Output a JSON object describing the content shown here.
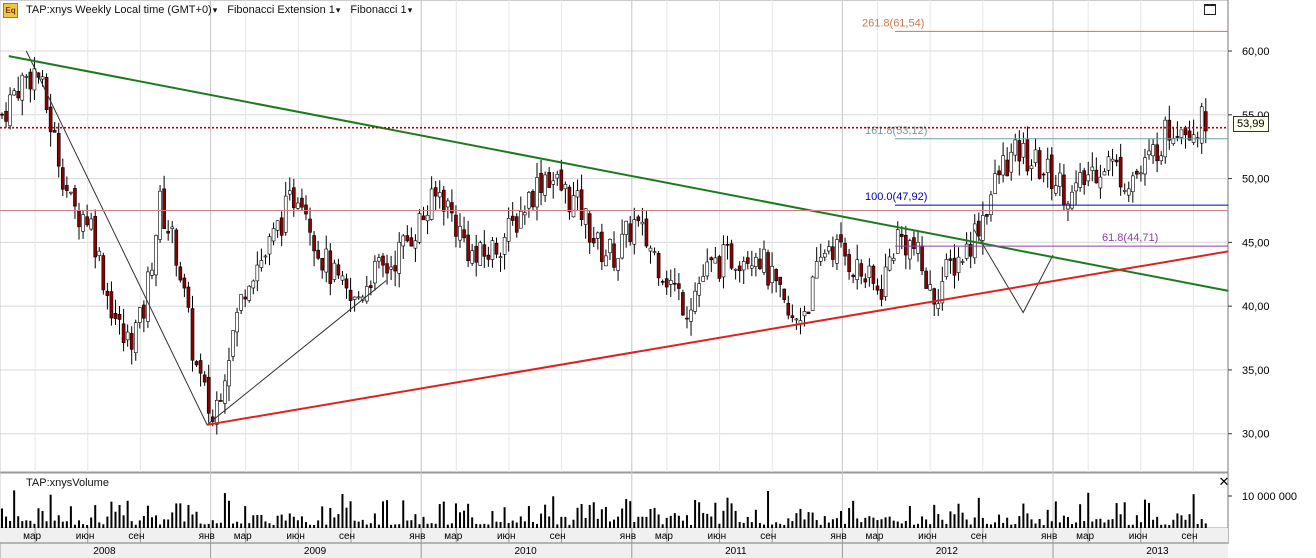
{
  "toolbar": {
    "app_icon": "Eq",
    "symbol_title": "TAP:xnys Weekly Local time (GMT+0)",
    "study1": "Fibonacci Extension 1",
    "study2": "Fibonacci 1"
  },
  "volume_title": "TAP:xnysVolume",
  "last_price": "53,99",
  "icons": {
    "maximize": "maximize-icon",
    "close": "close-icon"
  },
  "colors": {
    "up_candle": "#ffffff",
    "down_candle": "#8b0000",
    "wick": "#000000",
    "trend_green": "#1e7a1e",
    "trend_red": "#e02020",
    "price_line": "#b40000",
    "fib_261": "#c87850",
    "fib_161": "#6aa0a8",
    "fib_100": "#0000aa",
    "fib_618": "#9040a0",
    "fib_0": "#d08080",
    "volume": "#000000",
    "grid": "#d8d8d8",
    "bottom_bar": "#f0f0f0"
  },
  "chart_data": {
    "type": "candlestick",
    "symbol": "TAP:xnys",
    "interval": "Weekly",
    "y_axis": {
      "range": [
        27.0,
        64.0
      ],
      "ticks": [
        "60,00",
        "55,00",
        "50,00",
        "45,00",
        "40,00",
        "35,00",
        "30,00"
      ],
      "tick_values": [
        60,
        55,
        50,
        45,
        40,
        35,
        30
      ]
    },
    "volume_axis": {
      "ticks": [
        "10 000 000"
      ],
      "tick_values": [
        10000000
      ]
    },
    "month_labels": [
      "мар",
      "июн",
      "сен",
      "янв",
      "мар",
      "июн",
      "сен",
      "янв",
      "мар",
      "июн",
      "сен",
      "янв",
      "мар",
      "июн",
      "сен",
      "янв",
      "мар",
      "июн",
      "сен",
      "янв",
      "мар",
      "июн",
      "сен"
    ],
    "month_index": [
      2,
      5,
      8,
      12,
      14,
      17,
      20,
      24,
      26,
      29,
      32,
      36,
      38,
      41,
      44,
      48,
      50,
      53,
      56,
      60,
      62,
      65,
      68
    ],
    "year_labels": [
      "2008",
      "2009",
      "2010",
      "2011",
      "2012",
      "2013"
    ],
    "year_start_index": [
      0,
      12,
      24,
      36,
      48,
      60
    ],
    "x_span_months": [
      0,
      70
    ],
    "price_path": [
      [
        0,
        55.0
      ],
      [
        1,
        57.5
      ],
      [
        2,
        58.5
      ],
      [
        3,
        53.0
      ],
      [
        4,
        47.5
      ],
      [
        5,
        47.0
      ],
      [
        6,
        41.0
      ],
      [
        7,
        37.0
      ],
      [
        8,
        39.0
      ],
      [
        9,
        48.0
      ],
      [
        10,
        44.0
      ],
      [
        11,
        35.5
      ],
      [
        12,
        31.0
      ],
      [
        13,
        37.0
      ],
      [
        14,
        42.5
      ],
      [
        15,
        44.0
      ],
      [
        16,
        47.0
      ],
      [
        17,
        49.5
      ],
      [
        18,
        44.5
      ],
      [
        19,
        42.0
      ],
      [
        20,
        40.0
      ],
      [
        21,
        42.5
      ],
      [
        22,
        43.0
      ],
      [
        23,
        45.0
      ],
      [
        24,
        47.0
      ],
      [
        25,
        49.0
      ],
      [
        26,
        46.0
      ],
      [
        27,
        43.5
      ],
      [
        28,
        44.5
      ],
      [
        29,
        46.0
      ],
      [
        30,
        48.5
      ],
      [
        31,
        50.5
      ],
      [
        32,
        49.0
      ],
      [
        33,
        47.5
      ],
      [
        34,
        44.5
      ],
      [
        35,
        44.0
      ],
      [
        36,
        46.5
      ],
      [
        37,
        44.5
      ],
      [
        38,
        42.0
      ],
      [
        39,
        40.0
      ],
      [
        40,
        42.5
      ],
      [
        41,
        43.5
      ],
      [
        42,
        44.0
      ],
      [
        43,
        44.5
      ],
      [
        44,
        41.5
      ],
      [
        45,
        38.5
      ],
      [
        46,
        40.5
      ],
      [
        47,
        45.0
      ],
      [
        48,
        44.0
      ],
      [
        49,
        42.5
      ],
      [
        50,
        41.0
      ],
      [
        51,
        45.5
      ],
      [
        52,
        44.5
      ],
      [
        53,
        40.5
      ],
      [
        54,
        43.0
      ],
      [
        55,
        44.5
      ],
      [
        56,
        47.5
      ],
      [
        57,
        51.0
      ],
      [
        58,
        52.0
      ],
      [
        59,
        51.0
      ],
      [
        60,
        50.0
      ],
      [
        61,
        48.5
      ],
      [
        62,
        50.5
      ],
      [
        63,
        51.5
      ],
      [
        64,
        50.0
      ],
      [
        65,
        50.5
      ],
      [
        66,
        53.0
      ],
      [
        67,
        54.5
      ],
      [
        68,
        54.0
      ],
      [
        69,
        55.0
      ]
    ],
    "price_line": {
      "value": 53.99,
      "label": "53,99"
    },
    "fibonacci_levels": [
      {
        "ratio": "261.8",
        "value": 61.54,
        "label": "261.8(61,54)"
      },
      {
        "ratio": "161.8",
        "value": 53.12,
        "label": "161.8(53,12)"
      },
      {
        "ratio": "100.0",
        "value": 47.92,
        "label": "100.0(47,92)"
      },
      {
        "ratio": "61.8",
        "value": 44.71,
        "label": "61.8(44,71)"
      },
      {
        "ratio": "0",
        "value": 47.5,
        "label": ""
      }
    ],
    "trendlines": [
      {
        "name": "",
        "color": "green",
        "from": [
          0.5,
          59.6
        ],
        "to": [
          70,
          41.2
        ]
      },
      {
        "name": "",
        "color": "red",
        "from": [
          11.8,
          30.7
        ],
        "to": [
          70,
          44.3
        ]
      }
    ],
    "zigzag": [
      [
        1.5,
        60.0
      ],
      [
        11.8,
        30.7
      ],
      [
        22.0,
        42.0
      ]
    ],
    "zigzag2": [
      [
        55.5,
        46.0
      ],
      [
        58.3,
        39.5
      ],
      [
        60.0,
        44.0
      ]
    ],
    "grid": true,
    "legend": "none"
  }
}
